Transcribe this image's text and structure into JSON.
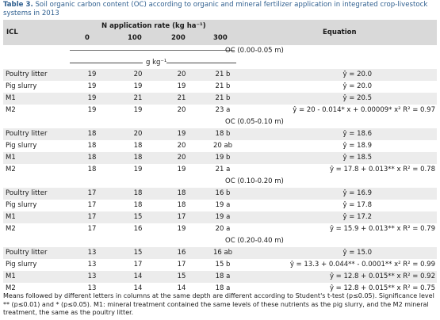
{
  "caption": {
    "label": "Table 3.",
    "text": " Soil organic carbon content (OC) according to organic and mineral fertilizer application in integrated crop-livestock systems in 2013"
  },
  "header": {
    "icl": "ICL",
    "n_rate": "N application rate (kg ha⁻¹)",
    "rates": [
      "0",
      "100",
      "200",
      "300"
    ],
    "equation": "Equation",
    "unit": "g kg⁻¹"
  },
  "sections": [
    {
      "title": "OC (0.00-0.05 m)",
      "rows": [
        {
          "icl": "Poultry litter",
          "v": [
            "19",
            "20",
            "20",
            "21 b"
          ],
          "eq": "ŷ = 20.0"
        },
        {
          "icl": "Pig slurry",
          "v": [
            "19",
            "19",
            "19",
            "21 b"
          ],
          "eq": "ŷ = 20.0"
        },
        {
          "icl": "M1",
          "v": [
            "19",
            "21",
            "21",
            "21 b"
          ],
          "eq": "ŷ = 20.5"
        },
        {
          "icl": "M2",
          "v": [
            "19",
            "19",
            "20",
            "23 a"
          ],
          "eq": "ŷ = 20 - 0.014* x + 0.00009* x²  R² = 0.97"
        }
      ]
    },
    {
      "title": "OC (0.05-0.10 m)",
      "rows": [
        {
          "icl": "Poultry litter",
          "v": [
            "18",
            "20",
            "19",
            "18 b"
          ],
          "eq": "ŷ = 18.6"
        },
        {
          "icl": "Pig slurry",
          "v": [
            "18",
            "18",
            "20",
            "20 ab"
          ],
          "eq": "ŷ = 18.9"
        },
        {
          "icl": "M1",
          "v": [
            "18",
            "18",
            "20",
            "19 b"
          ],
          "eq": "ŷ = 18.5"
        },
        {
          "icl": "M2",
          "v": [
            "18",
            "19",
            "19",
            "21 a"
          ],
          "eq": "ŷ = 17.8 + 0.013** x  R² = 0.78"
        }
      ]
    },
    {
      "title": "OC (0.10-0.20 m)",
      "rows": [
        {
          "icl": "Poultry litter",
          "v": [
            "17",
            "18",
            "18",
            "16 b"
          ],
          "eq": "ŷ = 16.9"
        },
        {
          "icl": "Pig slurry",
          "v": [
            "17",
            "18",
            "18",
            "19 a"
          ],
          "eq": "ŷ = 17.8"
        },
        {
          "icl": "M1",
          "v": [
            "17",
            "15",
            "17",
            "19 a"
          ],
          "eq": "ŷ = 17.2"
        },
        {
          "icl": "M2",
          "v": [
            "17",
            "16",
            "19",
            "20 a"
          ],
          "eq": "ŷ = 15.9 + 0.013** x  R² = 0.79"
        }
      ]
    },
    {
      "title": "OC (0.20-0.40 m)",
      "rows": [
        {
          "icl": "Poultry litter",
          "v": [
            "13",
            "15",
            "16",
            "16 ab"
          ],
          "eq": "ŷ = 15.0"
        },
        {
          "icl": "Pig slurry",
          "v": [
            "13",
            "17",
            "17",
            "15 b"
          ],
          "eq": "ŷ = 13.3 + 0.044** - 0.0001** x²  R² = 0.99"
        },
        {
          "icl": "M1",
          "v": [
            "13",
            "14",
            "15",
            "18 a"
          ],
          "eq": "ŷ = 12.8 + 0.015** x  R² = 0.92"
        },
        {
          "icl": "M2",
          "v": [
            "13",
            "14",
            "14",
            "18 a"
          ],
          "eq": "ŷ = 12.8 + 0.015** x  R² = 0.75"
        }
      ]
    }
  ],
  "footnote": "Means followed by different letters in columns at the same depth are different according to Student's t-test (p≤0.05). Significance level ** (p≤0.01) and * (p≤0.05). M1: mineral treatment contained the same levels of these nutrients as the pig slurry, and the M2 mineral treatment, the same as the poultry litter."
}
